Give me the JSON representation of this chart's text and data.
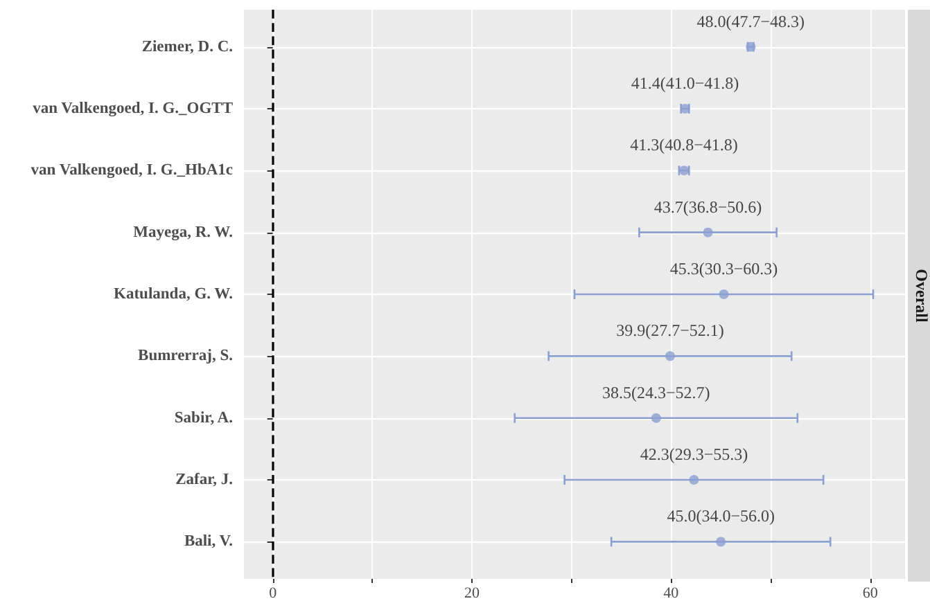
{
  "chart_data": {
    "type": "scatter",
    "orientation": "horizontal",
    "marker": "circle",
    "color": "#8c9fd1",
    "grid": true,
    "categories": [
      "Ziemer, D. C.",
      "van Valkengoed, I. G._OGTT",
      "van Valkengoed, I. G._HbA1c",
      "Mayega, R. W.",
      "Katulanda, G. W.",
      "Bumrerraj, S.",
      "Sabir, A.",
      "Zafar, J.",
      "Bali, V."
    ],
    "values": [
      48.0,
      41.4,
      41.3,
      43.7,
      45.3,
      39.9,
      38.5,
      42.3,
      45.0
    ],
    "errors": [
      [
        47.7,
        48.3
      ],
      [
        41.0,
        41.8
      ],
      [
        40.8,
        41.8
      ],
      [
        36.8,
        50.6
      ],
      [
        30.3,
        60.3
      ],
      [
        27.7,
        52.1
      ],
      [
        24.3,
        52.7
      ],
      [
        29.3,
        55.3
      ],
      [
        34.0,
        56.0
      ]
    ],
    "value_labels": [
      "48.0(47.7−48.3)",
      "41.4(41.0−41.8)",
      "41.3(40.8−41.8)",
      "43.7(36.8−50.6)",
      "45.3(30.3−60.3)",
      "39.9(27.7−52.1)",
      "38.5(24.3−52.7)",
      "42.3(29.3−55.3)",
      "45.0(34.0−56.0)"
    ],
    "xlim": [
      -2.9,
      63.5
    ],
    "xticks": [
      0,
      {
        "value": 10,
        "label": null
      },
      20,
      {
        "value": 30,
        "label": null
      },
      40,
      {
        "value": 50,
        "label": null
      },
      60
    ],
    "ref_lines": [
      {
        "axis": "x",
        "value": 0,
        "color": "#000000",
        "line_style": "dashed"
      }
    ],
    "annotations": [
      "Overall"
    ]
  }
}
